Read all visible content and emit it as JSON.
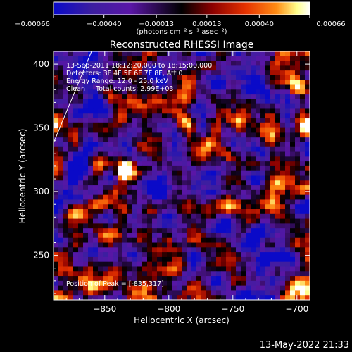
{
  "chart_data": {
    "type": "heatmap",
    "title": "Reconstructed RHESSI Image",
    "xlabel": "Heliocentric X (arcsec)",
    "ylabel": "Heliocentric Y (arcsec)",
    "xlim": [
      -890,
      -690
    ],
    "ylim": [
      215,
      410
    ],
    "x_ticks": [
      -850,
      -800,
      -750,
      -700
    ],
    "y_ticks": [
      250,
      300,
      350,
      400
    ],
    "x_tick_labels": [
      "−850",
      "−800",
      "−750",
      "−700"
    ],
    "y_tick_labels": [
      "250",
      "300",
      "350",
      "400"
    ],
    "colorbar": {
      "min": -0.00066,
      "max": 0.00066,
      "ticks": [
        -0.00066,
        -0.0004,
        -0.00013,
        0.00013,
        0.0004,
        0.00066
      ],
      "tick_labels": [
        "−0.00066",
        "−0.00040",
        "−0.00013",
        "0.00013",
        "0.00040",
        "0.00066"
      ],
      "units_label": "(photons cm⁻² s⁻¹ asec⁻²)"
    },
    "annotations": [
      "13-Sep-2011 18:12:20.000 to 18:15:00.000",
      "Detectors: 3F 4F 5F 6F 7F 8F, Att 0",
      "Energy Range: 12.0 - 25.0 keV",
      "Clean     Total counts: 2.99E+03"
    ],
    "peak_label": "Position of Peak = [-835,317]",
    "peak_position": [
      -835,
      317
    ],
    "limb_arc": true,
    "grid": false,
    "footer_date": "13-May-2022 21:33"
  },
  "colors": {
    "background": "#000000",
    "colormap": [
      "#0a0ac8",
      "#3c1ea0",
      "#5a16a6",
      "#000000",
      "#8c0000",
      "#e63200",
      "#ff8c14",
      "#ffff8c",
      "#ffffff"
    ]
  }
}
